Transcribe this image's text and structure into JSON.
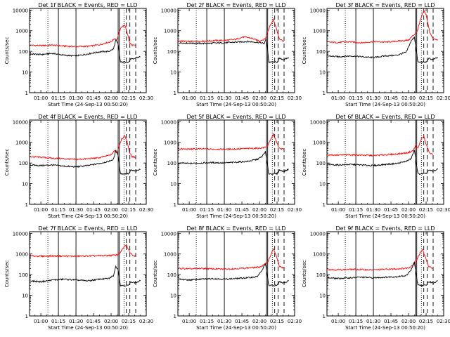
{
  "chart_data": [
    {
      "type": "line",
      "title": "Det 1f BLACK = Events, RED = LLD",
      "xlabel": "Start Time (24-Sep-13 00:50:20)",
      "ylabel": "Counts/sec",
      "yscale": "log",
      "ylim": [
        1,
        12000
      ],
      "xlim": [
        "00:50:20",
        "02:30"
      ],
      "x_ticks": [
        "01:00",
        "01:15",
        "01:30",
        "01:45",
        "02:00",
        "02:15",
        "02:30"
      ],
      "y_ticks": [
        "1",
        "10",
        "100",
        "1000",
        "10000"
      ],
      "vlines_dotted": [
        "01:06",
        "02:11"
      ],
      "vlines_solid": [
        "01:15",
        "01:30",
        "02:06",
        "02:07"
      ],
      "vlines_dashed": [
        "02:13",
        "02:16",
        "02:21"
      ],
      "series": [
        {
          "color": "#ff0000",
          "x": [
            "00:51",
            "01:00",
            "01:10",
            "01:20",
            "01:30",
            "01:40",
            "01:50",
            "02:00",
            "02:03",
            "02:05",
            "02:07",
            "02:09",
            "02:12",
            "02:14",
            "02:16",
            "02:18",
            "02:21"
          ],
          "y": [
            200,
            190,
            200,
            180,
            170,
            175,
            210,
            300,
            420,
            360,
            900,
            1600,
            1800,
            700,
            250,
            200,
            190
          ]
        },
        {
          "color": "#000000",
          "x": [
            "00:51",
            "01:00",
            "01:10",
            "01:20",
            "01:30",
            "01:40",
            "01:50",
            "01:58",
            "02:02",
            "02:04",
            "02:06",
            "02:08",
            "02:15",
            "02:17",
            "02:19",
            "02:21",
            "02:25"
          ],
          "y": [
            75,
            70,
            80,
            65,
            60,
            75,
            95,
            100,
            130,
            350,
            220,
            30,
            30,
            45,
            40,
            50,
            55
          ]
        }
      ]
    },
    {
      "type": "line",
      "title": "Det 2f BLACK = Events, RED = LLD",
      "xlabel": "Start Time (24-Sep-13 00:50:20)",
      "ylabel": "Counts/sec",
      "yscale": "log",
      "ylim": [
        1,
        12000
      ],
      "xlim": [
        "00:50:20",
        "02:30"
      ],
      "x_ticks": [
        "01:00",
        "01:15",
        "01:30",
        "01:45",
        "02:00",
        "02:15",
        "02:30"
      ],
      "y_ticks": [
        "1",
        "10",
        "100",
        "1000",
        "10000"
      ],
      "vlines_dotted": [
        "01:06",
        "02:11"
      ],
      "vlines_solid": [
        "01:15",
        "01:30",
        "02:06",
        "02:07"
      ],
      "vlines_dashed": [
        "02:13",
        "02:16",
        "02:21"
      ],
      "series": [
        {
          "color": "#ff0000",
          "x": [
            "00:51",
            "01:00",
            "01:10",
            "01:20",
            "01:30",
            "01:40",
            "01:46",
            "01:52",
            "02:00",
            "02:05",
            "02:09",
            "02:12",
            "02:14",
            "02:17",
            "02:21"
          ],
          "y": [
            320,
            300,
            310,
            330,
            340,
            380,
            500,
            450,
            320,
            400,
            1800,
            3500,
            1500,
            400,
            300
          ]
        },
        {
          "color": "#000000",
          "x": [
            "00:51",
            "01:00",
            "01:10",
            "01:20",
            "01:30",
            "01:40",
            "01:50",
            "02:00",
            "02:04",
            "02:06",
            "02:08",
            "02:15",
            "02:17",
            "02:21",
            "02:25"
          ],
          "y": [
            260,
            250,
            240,
            250,
            260,
            280,
            300,
            270,
            240,
            400,
            30,
            30,
            45,
            40,
            50
          ]
        }
      ]
    },
    {
      "type": "line",
      "title": "Det 3f BLACK = Events, RED = LLD",
      "xlabel": "Start Time (24-Sep-13 00:50:20)",
      "ylabel": "Counts/sec",
      "yscale": "log",
      "ylim": [
        1,
        12000
      ],
      "xlim": [
        "00:50:20",
        "02:30"
      ],
      "x_ticks": [
        "01:00",
        "01:15",
        "01:30",
        "01:45",
        "02:00",
        "02:15",
        "02:30"
      ],
      "y_ticks": [
        "1",
        "10",
        "100",
        "1000",
        "10000"
      ],
      "vlines_dotted": [
        "01:06",
        "02:11"
      ],
      "vlines_solid": [
        "01:15",
        "01:30",
        "02:06",
        "02:07"
      ],
      "vlines_dashed": [
        "02:13",
        "02:16",
        "02:21"
      ],
      "series": [
        {
          "color": "#ff0000",
          "x": [
            "00:51",
            "01:00",
            "01:10",
            "01:20",
            "01:30",
            "01:40",
            "01:50",
            "02:00",
            "02:04",
            "02:07",
            "02:10",
            "02:13",
            "02:15",
            "02:18",
            "02:21",
            "02:25"
          ],
          "y": [
            280,
            270,
            290,
            260,
            300,
            280,
            310,
            350,
            600,
            800,
            3000,
            9500,
            6000,
            900,
            400,
            350
          ]
        },
        {
          "color": "#000000",
          "x": [
            "00:51",
            "01:00",
            "01:10",
            "01:20",
            "01:30",
            "01:40",
            "01:50",
            "01:58",
            "02:02",
            "02:05",
            "02:08",
            "02:15",
            "02:17",
            "02:21",
            "02:25"
          ],
          "y": [
            60,
            55,
            60,
            55,
            50,
            60,
            65,
            90,
            300,
            500,
            30,
            30,
            45,
            40,
            50
          ]
        }
      ]
    },
    {
      "type": "line",
      "title": "Det 4f BLACK = Events, RED = LLD",
      "xlabel": "Start Time (24-Sep-13 00:50:20)",
      "ylabel": "Counts/sec",
      "yscale": "log",
      "ylim": [
        1,
        12000
      ],
      "xlim": [
        "00:50:20",
        "02:30"
      ],
      "x_ticks": [
        "01:00",
        "01:15",
        "01:30",
        "01:45",
        "02:00",
        "02:15",
        "02:30"
      ],
      "y_ticks": [
        "1",
        "10",
        "100",
        "1000",
        "10000"
      ],
      "vlines_dotted": [
        "01:06",
        "02:11"
      ],
      "vlines_solid": [
        "01:15",
        "01:30",
        "02:06",
        "02:07"
      ],
      "vlines_dashed": [
        "02:13",
        "02:16",
        "02:21"
      ],
      "series": [
        {
          "color": "#ff0000",
          "x": [
            "00:51",
            "01:00",
            "01:10",
            "01:20",
            "01:30",
            "01:40",
            "01:50",
            "02:00",
            "02:03",
            "02:05",
            "02:07",
            "02:09",
            "02:12",
            "02:14",
            "02:16",
            "02:18",
            "02:21"
          ],
          "y": [
            200,
            190,
            170,
            160,
            150,
            160,
            180,
            250,
            400,
            300,
            700,
            1500,
            2000,
            900,
            300,
            200,
            190
          ]
        },
        {
          "color": "#000000",
          "x": [
            "00:51",
            "01:00",
            "01:10",
            "01:20",
            "01:30",
            "01:40",
            "01:50",
            "01:58",
            "02:02",
            "02:04",
            "02:06",
            "02:08",
            "02:15",
            "02:17",
            "02:21",
            "02:25"
          ],
          "y": [
            80,
            75,
            80,
            70,
            65,
            75,
            95,
            120,
            150,
            400,
            250,
            30,
            30,
            45,
            40,
            50
          ]
        }
      ]
    },
    {
      "type": "line",
      "title": "Det 5f BLACK = Events, RED = LLD",
      "xlabel": "Start Time (24-Sep-13 00:50:20)",
      "ylabel": "Counts/sec",
      "yscale": "log",
      "ylim": [
        1,
        12000
      ],
      "xlim": [
        "00:50:20",
        "02:30"
      ],
      "x_ticks": [
        "01:00",
        "01:15",
        "01:30",
        "01:45",
        "02:00",
        "02:15",
        "02:30"
      ],
      "y_ticks": [
        "1",
        "10",
        "100",
        "1000",
        "10000"
      ],
      "vlines_dotted": [
        "01:06",
        "02:11"
      ],
      "vlines_solid": [
        "01:15",
        "01:30",
        "02:06",
        "02:07"
      ],
      "vlines_dashed": [
        "02:13",
        "02:16",
        "02:21"
      ],
      "series": [
        {
          "color": "#ff0000",
          "x": [
            "00:51",
            "01:00",
            "01:10",
            "01:20",
            "01:30",
            "01:40",
            "01:50",
            "02:00",
            "02:04",
            "02:07",
            "02:10",
            "02:12",
            "02:14",
            "02:17",
            "02:21"
          ],
          "y": [
            480,
            470,
            480,
            470,
            460,
            480,
            500,
            520,
            550,
            700,
            1500,
            2500,
            1200,
            500,
            470
          ]
        },
        {
          "color": "#000000",
          "x": [
            "00:51",
            "01:00",
            "01:10",
            "01:20",
            "01:30",
            "01:40",
            "01:50",
            "01:58",
            "02:02",
            "02:05",
            "02:08",
            "02:15",
            "02:17",
            "02:21",
            "02:25"
          ],
          "y": [
            100,
            95,
            100,
            105,
            100,
            110,
            120,
            150,
            200,
            350,
            30,
            30,
            45,
            40,
            50
          ]
        }
      ]
    },
    {
      "type": "line",
      "title": "Det 6f BLACK = Events, RED = LLD",
      "xlabel": "Start Time (24-Sep-13 00:50:20)",
      "ylabel": "Counts/sec",
      "yscale": "log",
      "ylim": [
        1,
        12000
      ],
      "xlim": [
        "00:50:20",
        "02:30"
      ],
      "x_ticks": [
        "01:00",
        "01:15",
        "01:30",
        "01:45",
        "02:00",
        "02:15",
        "02:30"
      ],
      "y_ticks": [
        "1",
        "10",
        "100",
        "1000",
        "10000"
      ],
      "vlines_dotted": [
        "01:06",
        "02:11"
      ],
      "vlines_solid": [
        "01:15",
        "01:30",
        "02:06",
        "02:07"
      ],
      "vlines_dashed": [
        "02:13",
        "02:16",
        "02:21"
      ],
      "series": [
        {
          "color": "#ff0000",
          "x": [
            "00:51",
            "01:00",
            "01:10",
            "01:20",
            "01:30",
            "01:40",
            "01:50",
            "02:00",
            "02:04",
            "02:06",
            "02:08",
            "02:11",
            "02:13",
            "02:15",
            "02:18",
            "02:21"
          ],
          "y": [
            250,
            240,
            250,
            240,
            230,
            250,
            270,
            320,
            400,
            700,
            500,
            1500,
            2000,
            800,
            300,
            250
          ]
        },
        {
          "color": "#000000",
          "x": [
            "00:51",
            "01:00",
            "01:10",
            "01:20",
            "01:30",
            "01:40",
            "01:50",
            "01:58",
            "02:02",
            "02:05",
            "02:08",
            "02:15",
            "02:17",
            "02:21",
            "02:25"
          ],
          "y": [
            85,
            80,
            85,
            80,
            75,
            85,
            95,
            120,
            160,
            400,
            30,
            30,
            45,
            40,
            50
          ]
        }
      ]
    },
    {
      "type": "line",
      "title": "Det 7f BLACK = Events, RED = LLD",
      "xlabel": "Start Time (24-Sep-13 00:50:20)",
      "ylabel": "Counts/sec",
      "yscale": "log",
      "ylim": [
        1,
        12000
      ],
      "xlim": [
        "00:50:20",
        "02:30"
      ],
      "x_ticks": [
        "01:00",
        "01:15",
        "01:30",
        "01:45",
        "02:00",
        "02:15",
        "02:30"
      ],
      "y_ticks": [
        "1",
        "10",
        "100",
        "1000",
        "10000"
      ],
      "vlines_dotted": [
        "01:06",
        "02:11"
      ],
      "vlines_solid": [
        "01:15",
        "01:30",
        "02:06",
        "02:07"
      ],
      "vlines_dashed": [
        "02:13",
        "02:16",
        "02:21"
      ],
      "series": [
        {
          "color": "#ff0000",
          "x": [
            "00:51",
            "01:00",
            "01:10",
            "01:20",
            "01:30",
            "01:40",
            "01:50",
            "02:00",
            "02:05",
            "02:08",
            "02:11",
            "02:13",
            "02:15",
            "02:18",
            "02:21"
          ],
          "y": [
            800,
            780,
            800,
            790,
            780,
            800,
            820,
            850,
            900,
            1200,
            2200,
            2800,
            1500,
            900,
            800
          ]
        },
        {
          "color": "#000000",
          "x": [
            "00:51",
            "01:00",
            "01:10",
            "01:20",
            "01:30",
            "01:40",
            "01:50",
            "01:58",
            "02:02",
            "02:04",
            "02:06",
            "02:08",
            "02:15",
            "02:17",
            "02:21",
            "02:25"
          ],
          "y": [
            50,
            45,
            55,
            60,
            55,
            50,
            60,
            65,
            90,
            250,
            180,
            30,
            30,
            45,
            40,
            50
          ]
        }
      ]
    },
    {
      "type": "line",
      "title": "Det 8f BLACK = Events, RED = LLD",
      "xlabel": "Start Time (24-Sep-13 00:50:20)",
      "ylabel": "Counts/sec",
      "yscale": "log",
      "ylim": [
        1,
        12000
      ],
      "xlim": [
        "00:50:20",
        "02:30"
      ],
      "x_ticks": [
        "01:00",
        "01:15",
        "01:30",
        "01:45",
        "02:00",
        "02:15",
        "02:30"
      ],
      "y_ticks": [
        "1",
        "10",
        "100",
        "1000",
        "10000"
      ],
      "vlines_dotted": [
        "01:06",
        "02:11"
      ],
      "vlines_solid": [
        "01:15",
        "01:30",
        "02:06",
        "02:07"
      ],
      "vlines_dashed": [
        "02:13",
        "02:16",
        "02:21"
      ],
      "series": [
        {
          "color": "#ff0000",
          "x": [
            "00:51",
            "01:00",
            "01:10",
            "01:20",
            "01:30",
            "01:40",
            "01:50",
            "02:00",
            "02:04",
            "02:07",
            "02:10",
            "02:12",
            "02:14",
            "02:17",
            "02:21"
          ],
          "y": [
            200,
            190,
            200,
            190,
            185,
            195,
            210,
            230,
            300,
            400,
            1000,
            1800,
            900,
            250,
            200
          ]
        },
        {
          "color": "#000000",
          "x": [
            "00:51",
            "01:00",
            "01:10",
            "01:20",
            "01:30",
            "01:40",
            "01:50",
            "01:58",
            "02:02",
            "02:05",
            "02:08",
            "02:15",
            "02:17",
            "02:21",
            "02:25"
          ],
          "y": [
            60,
            55,
            60,
            65,
            60,
            65,
            70,
            80,
            150,
            350,
            30,
            30,
            45,
            40,
            50
          ]
        }
      ]
    },
    {
      "type": "line",
      "title": "Det 9f BLACK = Events, RED = LLD",
      "xlabel": "Start Time (24-Sep-13 00:50:20)",
      "ylabel": "Counts/sec",
      "yscale": "log",
      "ylim": [
        1,
        12000
      ],
      "xlim": [
        "00:50:20",
        "02:30"
      ],
      "x_ticks": [
        "01:00",
        "01:15",
        "01:30",
        "01:45",
        "02:00",
        "02:15",
        "02:30"
      ],
      "y_ticks": [
        "1",
        "10",
        "100",
        "1000",
        "10000"
      ],
      "vlines_dotted": [
        "01:06",
        "02:11"
      ],
      "vlines_solid": [
        "01:15",
        "01:30",
        "02:06",
        "02:07"
      ],
      "vlines_dashed": [
        "02:13",
        "02:16",
        "02:21"
      ],
      "series": [
        {
          "color": "#ff0000",
          "x": [
            "00:51",
            "01:00",
            "01:10",
            "01:20",
            "01:30",
            "01:40",
            "01:50",
            "02:00",
            "02:04",
            "02:07",
            "02:10",
            "02:12",
            "02:14",
            "02:17",
            "02:21"
          ],
          "y": [
            180,
            170,
            180,
            175,
            170,
            180,
            190,
            210,
            300,
            500,
            1200,
            1600,
            800,
            250,
            200
          ]
        },
        {
          "color": "#000000",
          "x": [
            "00:51",
            "01:00",
            "01:10",
            "01:20",
            "01:30",
            "01:40",
            "01:50",
            "01:58",
            "02:02",
            "02:05",
            "02:08",
            "02:15",
            "02:17",
            "02:21",
            "02:25"
          ],
          "y": [
            70,
            65,
            70,
            75,
            70,
            75,
            80,
            90,
            160,
            400,
            30,
            30,
            45,
            40,
            50
          ]
        }
      ]
    }
  ]
}
